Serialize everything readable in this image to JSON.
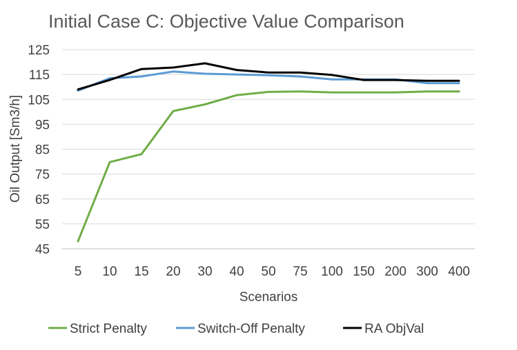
{
  "chart_data": {
    "type": "line",
    "title": "Initial Case C: Objective Value Comparison",
    "xlabel": "Scenarios",
    "ylabel": "Oil Output [Sm3/h]",
    "categories": [
      "5",
      "10",
      "15",
      "20",
      "30",
      "40",
      "50",
      "75",
      "100",
      "150",
      "200",
      "300",
      "400"
    ],
    "ylim": [
      45,
      125
    ],
    "yticks": [
      45,
      55,
      65,
      75,
      85,
      95,
      105,
      115,
      125
    ],
    "grid": true,
    "legend_position": "bottom",
    "series": [
      {
        "name": "Strict Penalty",
        "color": "#70ad47",
        "values": [
          48,
          79.8,
          83,
          100.3,
          103,
          106.7,
          108,
          108.2,
          107.8,
          107.8,
          107.8,
          108.2,
          108.2
        ]
      },
      {
        "name": "Switch-Off Penalty",
        "color": "#5b9bd5",
        "values": [
          108.5,
          113.5,
          114.2,
          116.2,
          115.3,
          115,
          114.7,
          114.2,
          113,
          113,
          113,
          111.5,
          111.5
        ]
      },
      {
        "name": "RA ObjVal",
        "color": "#000000",
        "values": [
          109,
          112.8,
          117.2,
          117.8,
          119.5,
          116.8,
          115.8,
          115.8,
          114.8,
          112.8,
          112.8,
          112.5,
          112.5
        ]
      }
    ]
  }
}
